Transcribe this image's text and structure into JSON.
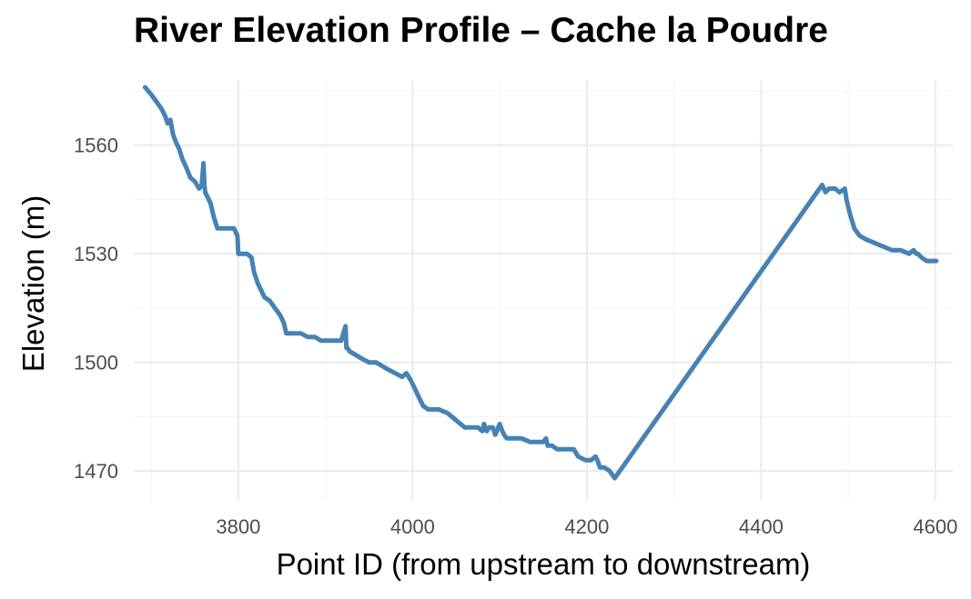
{
  "chart_data": {
    "type": "line",
    "title": "River Elevation Profile – Cache la Poudre",
    "xlabel": "Point ID (from upstream to downstream)",
    "ylabel": "Elevation (m)",
    "xlim": [
      3680,
      4620
    ],
    "ylim": [
      1462,
      1578
    ],
    "x_ticks": [
      3800,
      4000,
      4200,
      4400,
      4600
    ],
    "y_ticks": [
      1470,
      1500,
      1530,
      1560
    ],
    "grid": true,
    "line_color": "#4682B4",
    "series": [
      {
        "x": [
          3693,
          3700,
          3706,
          3712,
          3716,
          3719,
          3722,
          3725,
          3728,
          3732,
          3736,
          3740,
          3745,
          3750,
          3755,
          3758,
          3760,
          3761,
          3762,
          3764,
          3768,
          3772,
          3776,
          3780,
          3785,
          3790,
          3795,
          3799,
          3800,
          3805,
          3810,
          3815,
          3818,
          3822,
          3826,
          3830,
          3836,
          3842,
          3848,
          3852,
          3855,
          3860,
          3866,
          3872,
          3880,
          3888,
          3895,
          3900,
          3910,
          3918,
          3923,
          3924,
          3925,
          3928,
          3935,
          3942,
          3950,
          3958,
          3965,
          3972,
          3980,
          3988,
          3993,
          3998,
          4004,
          4008,
          4012,
          4018,
          4025,
          4030,
          4040,
          4050,
          4055,
          4060,
          4068,
          4075,
          4080,
          4082,
          4085,
          4088,
          4092,
          4095,
          4100,
          4103,
          4105,
          4108,
          4112,
          4118,
          4125,
          4135,
          4145,
          4150,
          4153,
          4155,
          4160,
          4166,
          4170,
          4180,
          4185,
          4190,
          4198,
          4205,
          4210,
          4212,
          4215,
          4220,
          4226,
          4232,
          4470,
          4474,
          4478,
          4485,
          4490,
          4496,
          4498,
          4502,
          4507,
          4513,
          4520,
          4530,
          4540,
          4550,
          4560,
          4570,
          4575,
          4578,
          4580,
          4584,
          4590,
          4595,
          4601
        ],
        "y": [
          1576,
          1574,
          1572,
          1570,
          1568,
          1566,
          1567,
          1563,
          1561,
          1559,
          1556,
          1554,
          1551,
          1550,
          1548,
          1549,
          1555,
          1549,
          1547,
          1546,
          1544,
          1540,
          1537,
          1537,
          1537,
          1537,
          1537,
          1535,
          1530,
          1530,
          1530,
          1529,
          1525,
          1522,
          1520,
          1518,
          1517,
          1515,
          1513,
          1511,
          1508,
          1508,
          1508,
          1508,
          1507,
          1507,
          1506,
          1506,
          1506,
          1506,
          1510,
          1504,
          1504,
          1503,
          1502,
          1501,
          1500,
          1500,
          1499,
          1498,
          1497,
          1496,
          1497,
          1495,
          1492,
          1490,
          1488,
          1487,
          1487,
          1487,
          1486,
          1484,
          1483,
          1482,
          1482,
          1482,
          1481,
          1483,
          1481,
          1482,
          1482,
          1480,
          1483,
          1481,
          1480,
          1479,
          1479,
          1479,
          1479,
          1478,
          1478,
          1478,
          1479,
          1477,
          1477,
          1476,
          1476,
          1476,
          1476,
          1474,
          1473,
          1473,
          1474,
          1473,
          1471,
          1471,
          1470,
          1468,
          1549,
          1547,
          1548,
          1548,
          1547,
          1548,
          1545,
          1541,
          1537,
          1535,
          1534,
          1533,
          1532,
          1531,
          1531,
          1530,
          1531,
          1530,
          1530,
          1529,
          1528,
          1528,
          1528
        ]
      }
    ]
  }
}
